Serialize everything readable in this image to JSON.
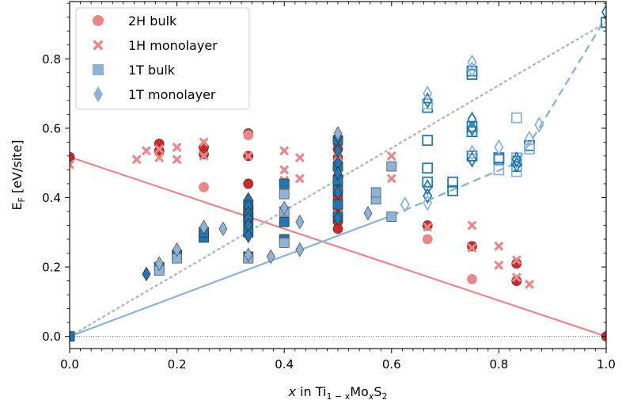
{
  "chart_data": {
    "type": "scatter",
    "title": "",
    "xlabel": {
      "italic": "x",
      "pre": " in Ti",
      "sub1": "1 − x",
      "mid": "Mo",
      "sub2": "x",
      "mid2": "S",
      "sub3": "2"
    },
    "ylabel": {
      "main": "E",
      "sub": "F",
      "rest": " [eV/site]"
    },
    "xlim": [
      0.0,
      1.0
    ],
    "ylim": [
      -0.035,
      0.965
    ],
    "xticks": [
      0.0,
      0.2,
      0.4,
      0.6,
      0.8,
      1.0
    ],
    "xtick_labels": [
      "0.0",
      "0.2",
      "0.4",
      "0.6",
      "0.8",
      "1.0"
    ],
    "yticks": [
      0.0,
      0.2,
      0.4,
      0.6,
      0.8
    ],
    "ytick_labels": [
      "0.0",
      "0.2",
      "0.4",
      "0.6",
      "0.8"
    ],
    "grid": false,
    "legend_position": "top-left",
    "colors": {
      "red": "#d62728",
      "red_light": "#e8888a",
      "blue": "#1f77b4",
      "blue_light": "#8cb4d8"
    },
    "legend": [
      {
        "label": "2H bulk",
        "marker": "circle",
        "color": "#e8888a"
      },
      {
        "label": "1H monolayer",
        "marker": "x",
        "color": "#e8888a"
      },
      {
        "label": "1T bulk",
        "marker": "square",
        "color": "#8cb4d8"
      },
      {
        "label": "1T monolayer",
        "marker": "diamond",
        "color": "#8cb4d8"
      }
    ],
    "lines": [
      {
        "style": "solid",
        "color": "#e8888a",
        "points": [
          [
            0.0,
            0.517
          ],
          [
            1.0,
            0.0
          ]
        ]
      },
      {
        "style": "solid",
        "color": "#8cb4d8",
        "points": [
          [
            0.0,
            0.0
          ],
          [
            0.6,
            0.348
          ]
        ]
      },
      {
        "style": "dashed",
        "color": "#8cb4d8",
        "points": [
          [
            0.6,
            0.348
          ],
          [
            0.833,
            0.5
          ],
          [
            0.875,
            0.6
          ],
          [
            1.0,
            0.92
          ]
        ]
      },
      {
        "style": "dotted",
        "color": "#bbbbbb",
        "points": [
          [
            0.0,
            0.0
          ],
          [
            1.0,
            0.905
          ]
        ]
      },
      {
        "style": "dotted-thin",
        "color": "#555555",
        "points": [
          [
            0.0,
            0.0
          ],
          [
            1.0,
            0.0
          ]
        ]
      }
    ],
    "series": [
      {
        "marker": "circle",
        "fill": "#d62728",
        "stroke": "#444444",
        "hollow": false,
        "points": [
          [
            0.0,
            0.517
          ],
          [
            0.167,
            0.555
          ],
          [
            0.167,
            0.535
          ],
          [
            0.25,
            0.545
          ],
          [
            0.25,
            0.525
          ],
          [
            0.333,
            0.585
          ],
          [
            0.333,
            0.52
          ],
          [
            0.333,
            0.44
          ],
          [
            0.5,
            0.565
          ],
          [
            0.5,
            0.54
          ],
          [
            0.5,
            0.515
          ],
          [
            0.5,
            0.49
          ],
          [
            0.5,
            0.46
          ],
          [
            0.5,
            0.44
          ],
          [
            0.5,
            0.42
          ],
          [
            0.5,
            0.4
          ],
          [
            0.5,
            0.37
          ],
          [
            0.5,
            0.35
          ],
          [
            0.5,
            0.33
          ],
          [
            0.5,
            0.31
          ],
          [
            0.667,
            0.32
          ],
          [
            0.75,
            0.26
          ],
          [
            0.833,
            0.21
          ],
          [
            0.833,
            0.16
          ],
          [
            1.0,
            0.0
          ]
        ]
      },
      {
        "marker": "circle",
        "fill": "#e8888a",
        "stroke": "#e8888a",
        "hollow": false,
        "points": [
          [
            0.25,
            0.43
          ],
          [
            0.333,
            0.58
          ],
          [
            0.667,
            0.28
          ],
          [
            0.75,
            0.165
          ]
        ]
      },
      {
        "marker": "x",
        "fill": "#e8888a",
        "stroke": "#e8888a",
        "hollow": false,
        "points": [
          [
            0.0,
            0.495
          ],
          [
            0.125,
            0.51
          ],
          [
            0.143,
            0.535
          ],
          [
            0.167,
            0.54
          ],
          [
            0.167,
            0.515
          ],
          [
            0.2,
            0.545
          ],
          [
            0.2,
            0.51
          ],
          [
            0.25,
            0.56
          ],
          [
            0.25,
            0.52
          ],
          [
            0.333,
            0.52
          ],
          [
            0.4,
            0.535
          ],
          [
            0.4,
            0.48
          ],
          [
            0.4,
            0.45
          ],
          [
            0.429,
            0.515
          ],
          [
            0.429,
            0.455
          ],
          [
            0.5,
            0.52
          ],
          [
            0.5,
            0.495
          ],
          [
            0.5,
            0.47
          ],
          [
            0.5,
            0.445
          ],
          [
            0.5,
            0.42
          ],
          [
            0.5,
            0.375
          ],
          [
            0.5,
            0.35
          ],
          [
            0.6,
            0.52
          ],
          [
            0.6,
            0.455
          ],
          [
            0.667,
            0.315
          ],
          [
            0.75,
            0.32
          ],
          [
            0.75,
            0.255
          ],
          [
            0.8,
            0.26
          ],
          [
            0.8,
            0.205
          ],
          [
            0.833,
            0.22
          ],
          [
            0.833,
            0.17
          ],
          [
            0.857,
            0.15
          ]
        ]
      },
      {
        "marker": "square",
        "fill": "#1f77b4",
        "stroke": "#333333",
        "hollow": false,
        "points": [
          [
            0.0,
            0.0
          ],
          [
            0.167,
            0.2
          ],
          [
            0.2,
            0.235
          ],
          [
            0.25,
            0.285
          ],
          [
            0.25,
            0.3
          ],
          [
            0.333,
            0.23
          ],
          [
            0.333,
            0.3
          ],
          [
            0.333,
            0.33
          ],
          [
            0.333,
            0.345
          ],
          [
            0.333,
            0.36
          ],
          [
            0.333,
            0.38
          ],
          [
            0.4,
            0.28
          ],
          [
            0.4,
            0.33
          ],
          [
            0.4,
            0.44
          ],
          [
            0.5,
            0.345
          ],
          [
            0.5,
            0.38
          ],
          [
            0.5,
            0.42
          ],
          [
            0.5,
            0.45
          ],
          [
            0.5,
            0.49
          ],
          [
            0.5,
            0.565
          ]
        ]
      },
      {
        "marker": "square",
        "fill": "#8cb4d8",
        "stroke": "#555555",
        "hollow": false,
        "points": [
          [
            0.167,
            0.19
          ],
          [
            0.2,
            0.225
          ],
          [
            0.333,
            0.225
          ],
          [
            0.4,
            0.27
          ],
          [
            0.4,
            0.36
          ],
          [
            0.4,
            0.41
          ],
          [
            0.571,
            0.395
          ],
          [
            0.571,
            0.415
          ],
          [
            0.6,
            0.345
          ],
          [
            0.6,
            0.49
          ]
        ]
      },
      {
        "marker": "square",
        "fill": "none",
        "stroke": "#1f77b4",
        "hollow": true,
        "points": [
          [
            0.667,
            0.66
          ],
          [
            0.667,
            0.565
          ],
          [
            0.667,
            0.485
          ],
          [
            0.667,
            0.445
          ],
          [
            0.714,
            0.445
          ],
          [
            0.714,
            0.42
          ],
          [
            0.75,
            0.765
          ],
          [
            0.75,
            0.755
          ],
          [
            0.75,
            0.605
          ],
          [
            0.75,
            0.59
          ],
          [
            0.75,
            0.52
          ],
          [
            0.8,
            0.515
          ],
          [
            0.8,
            0.51
          ],
          [
            0.833,
            0.505
          ],
          [
            0.833,
            0.49
          ],
          [
            0.857,
            0.55
          ],
          [
            1.0,
            0.905
          ]
        ]
      },
      {
        "marker": "square",
        "fill": "none",
        "stroke": "#8cb4d8",
        "hollow": true,
        "points": [
          [
            0.667,
            0.67
          ],
          [
            0.8,
            0.48
          ],
          [
            0.833,
            0.63
          ],
          [
            0.833,
            0.515
          ],
          [
            0.833,
            0.475
          ],
          [
            0.857,
            0.54
          ]
        ]
      },
      {
        "marker": "diamond",
        "fill": "#1f77b4",
        "stroke": "#333333",
        "hollow": false,
        "points": [
          [
            0.143,
            0.18
          ],
          [
            0.333,
            0.395
          ],
          [
            0.333,
            0.375
          ],
          [
            0.333,
            0.355
          ],
          [
            0.333,
            0.34
          ],
          [
            0.333,
            0.32
          ],
          [
            0.333,
            0.29
          ],
          [
            0.5,
            0.575
          ],
          [
            0.5,
            0.535
          ],
          [
            0.5,
            0.5
          ],
          [
            0.5,
            0.47
          ],
          [
            0.5,
            0.415
          ],
          [
            0.5,
            0.34
          ]
        ]
      },
      {
        "marker": "diamond",
        "fill": "#8cb4d8",
        "stroke": "#555555",
        "hollow": false,
        "points": [
          [
            0.167,
            0.21
          ],
          [
            0.2,
            0.25
          ],
          [
            0.25,
            0.315
          ],
          [
            0.286,
            0.31
          ],
          [
            0.333,
            0.235
          ],
          [
            0.375,
            0.23
          ],
          [
            0.4,
            0.37
          ],
          [
            0.429,
            0.25
          ],
          [
            0.429,
            0.33
          ],
          [
            0.5,
            0.585
          ],
          [
            0.556,
            0.355
          ]
        ]
      },
      {
        "marker": "diamond",
        "fill": "none",
        "stroke": "#1f77b4",
        "hollow": true,
        "points": [
          [
            0.667,
            0.68
          ],
          [
            0.667,
            0.43
          ],
          [
            0.667,
            0.405
          ],
          [
            0.75,
            0.625
          ],
          [
            0.75,
            0.6
          ],
          [
            0.75,
            0.51
          ],
          [
            0.833,
            0.51
          ],
          [
            0.833,
            0.495
          ],
          [
            1.0,
            0.935
          ]
        ]
      },
      {
        "marker": "diamond",
        "fill": "none",
        "stroke": "#8cb4d8",
        "hollow": true,
        "points": [
          [
            0.625,
            0.38
          ],
          [
            0.667,
            0.7
          ],
          [
            0.667,
            0.385
          ],
          [
            0.75,
            0.79
          ],
          [
            0.75,
            0.77
          ],
          [
            0.75,
            0.53
          ],
          [
            0.8,
            0.545
          ],
          [
            0.857,
            0.57
          ],
          [
            0.875,
            0.61
          ]
        ]
      }
    ]
  }
}
